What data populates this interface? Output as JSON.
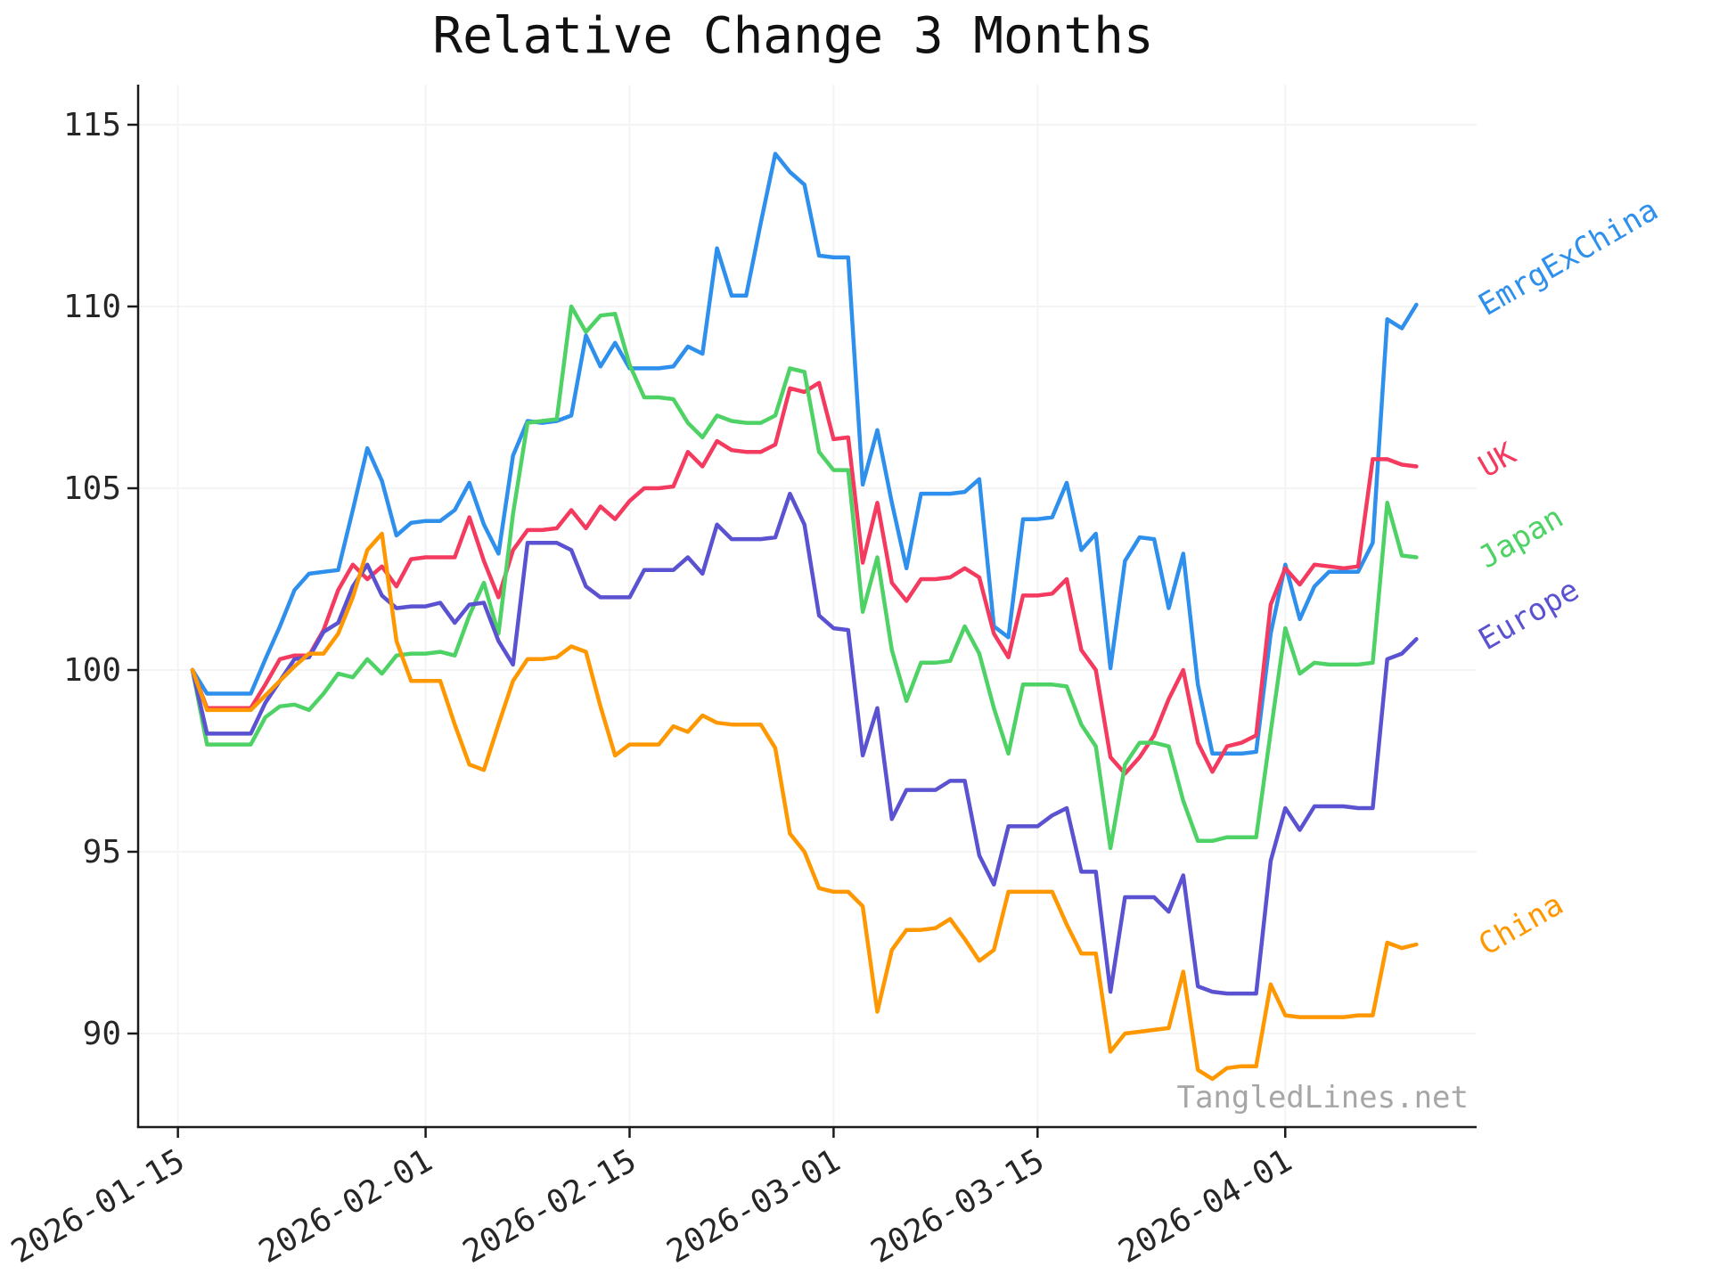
{
  "title": "Relative Change 3 Months",
  "watermark": "TangledLines.net",
  "chart_data": {
    "type": "line",
    "title": "Relative Change 3 Months",
    "xlabel": "",
    "ylabel": "",
    "grid": true,
    "legend_position": "right-edge-inline-labels",
    "ylim": [
      87.4,
      116.1
    ],
    "y_ticks": [
      90,
      95,
      100,
      105,
      110,
      115
    ],
    "x_ticks": [
      {
        "label": "2026-01-15",
        "x_index": -1
      },
      {
        "label": "2026-02-01",
        "x_index": 16
      },
      {
        "label": "2026-02-15",
        "x_index": 30
      },
      {
        "label": "2026-03-01",
        "x_index": 44
      },
      {
        "label": "2026-03-15",
        "x_index": 58
      },
      {
        "label": "2026-04-01",
        "x_index": 75
      }
    ],
    "colors": {
      "axis": "#1a1a1a",
      "grid": "#f4f4f4",
      "tick_label": "#262626",
      "title": "#111111",
      "watermark": "#a6a6a6"
    },
    "x": [
      "2026-01-16",
      "2026-01-17",
      "2026-01-18",
      "2026-01-19",
      "2026-01-20",
      "2026-01-21",
      "2026-01-22",
      "2026-01-23",
      "2026-01-24",
      "2026-01-25",
      "2026-01-26",
      "2026-01-27",
      "2026-01-28",
      "2026-01-29",
      "2026-01-30",
      "2026-01-31",
      "2026-02-01",
      "2026-02-02",
      "2026-02-03",
      "2026-02-04",
      "2026-02-05",
      "2026-02-06",
      "2026-02-07",
      "2026-02-08",
      "2026-02-09",
      "2026-02-10",
      "2026-02-11",
      "2026-02-12",
      "2026-02-13",
      "2026-02-14",
      "2026-02-15",
      "2026-02-16",
      "2026-02-17",
      "2026-02-18",
      "2026-02-19",
      "2026-02-20",
      "2026-02-21",
      "2026-02-22",
      "2026-02-23",
      "2026-02-24",
      "2026-02-25",
      "2026-02-26",
      "2026-02-27",
      "2026-02-28",
      "2026-03-01",
      "2026-03-02",
      "2026-03-03",
      "2026-03-04",
      "2026-03-05",
      "2026-03-06",
      "2026-03-07",
      "2026-03-08",
      "2026-03-09",
      "2026-03-10",
      "2026-03-11",
      "2026-03-12",
      "2026-03-13",
      "2026-03-14",
      "2026-03-15",
      "2026-03-16",
      "2026-03-17",
      "2026-03-18",
      "2026-03-19",
      "2026-03-20",
      "2026-03-21",
      "2026-03-22",
      "2026-03-23",
      "2026-03-24",
      "2026-03-25",
      "2026-03-26",
      "2026-03-27",
      "2026-03-28",
      "2026-03-29",
      "2026-03-30",
      "2026-03-31",
      "2026-04-01",
      "2026-04-02",
      "2026-04-03",
      "2026-04-04",
      "2026-04-05",
      "2026-04-06",
      "2026-04-07",
      "2026-04-08",
      "2026-04-09",
      "2026-04-10"
    ],
    "series": [
      {
        "name": "EmrgExChina",
        "color": "#2E90EC",
        "values": [
          100.0,
          99.35,
          99.35,
          99.35,
          99.35,
          100.3,
          101.2,
          102.2,
          102.65,
          102.7,
          102.75,
          104.4,
          106.1,
          105.2,
          103.7,
          104.05,
          104.1,
          104.1,
          104.4,
          105.15,
          104.0,
          103.2,
          105.9,
          106.85,
          106.8,
          106.85,
          107.0,
          109.2,
          108.35,
          109.0,
          108.3,
          108.3,
          108.3,
          108.35,
          108.9,
          108.7,
          111.6,
          110.3,
          110.3,
          112.3,
          114.2,
          113.7,
          113.35,
          111.4,
          111.35,
          111.35,
          105.1,
          106.6,
          104.6,
          102.8,
          104.85,
          104.85,
          104.85,
          104.9,
          105.25,
          101.2,
          100.9,
          104.15,
          104.15,
          104.2,
          105.15,
          103.3,
          103.75,
          100.05,
          103.0,
          103.65,
          103.6,
          101.7,
          103.2,
          99.6,
          97.7,
          97.7,
          97.7,
          97.75,
          101.0,
          102.9,
          101.4,
          102.3,
          102.7,
          102.7,
          102.7,
          103.5,
          109.65,
          109.4,
          110.05
        ]
      },
      {
        "name": "UK",
        "color": "#F43A5F",
        "values": [
          100.0,
          98.95,
          98.95,
          98.95,
          98.95,
          99.6,
          100.3,
          100.4,
          100.4,
          101.1,
          102.2,
          102.9,
          102.5,
          102.85,
          102.3,
          103.05,
          103.1,
          103.1,
          103.1,
          104.2,
          103.0,
          102.0,
          103.3,
          103.85,
          103.85,
          103.9,
          104.4,
          103.9,
          104.5,
          104.15,
          104.65,
          105.0,
          105.0,
          105.05,
          106.0,
          105.6,
          106.3,
          106.05,
          106.0,
          106.0,
          106.2,
          107.75,
          107.65,
          107.9,
          106.35,
          106.4,
          102.95,
          104.6,
          102.4,
          101.9,
          102.5,
          102.5,
          102.55,
          102.8,
          102.55,
          101.0,
          100.35,
          102.05,
          102.05,
          102.1,
          102.5,
          100.55,
          100.0,
          97.6,
          97.15,
          97.6,
          98.2,
          99.2,
          100.0,
          98.0,
          97.2,
          97.9,
          98.0,
          98.2,
          101.8,
          102.8,
          102.35,
          102.9,
          102.85,
          102.8,
          102.85,
          105.8,
          105.8,
          105.65,
          105.6
        ]
      },
      {
        "name": "Japan",
        "color": "#4FD265",
        "values": [
          100.0,
          97.95,
          97.95,
          97.95,
          97.95,
          98.7,
          99.0,
          99.05,
          98.9,
          99.35,
          99.9,
          99.8,
          100.3,
          99.9,
          100.4,
          100.45,
          100.45,
          100.5,
          100.4,
          101.5,
          102.4,
          101.0,
          104.3,
          106.8,
          106.85,
          106.9,
          110.0,
          109.3,
          109.75,
          109.8,
          108.4,
          107.5,
          107.5,
          107.45,
          106.8,
          106.4,
          107.0,
          106.85,
          106.8,
          106.8,
          107.0,
          108.3,
          108.2,
          106.0,
          105.5,
          105.5,
          101.6,
          103.1,
          100.55,
          99.15,
          100.2,
          100.2,
          100.25,
          101.2,
          100.45,
          98.95,
          97.7,
          99.6,
          99.6,
          99.6,
          99.55,
          98.5,
          97.9,
          95.1,
          97.4,
          98.0,
          98.0,
          97.9,
          96.4,
          95.3,
          95.3,
          95.4,
          95.4,
          95.4,
          98.3,
          101.15,
          99.9,
          100.2,
          100.15,
          100.15,
          100.15,
          100.2,
          104.6,
          103.15,
          103.1
        ]
      },
      {
        "name": "Europe",
        "color": "#5A52D0",
        "values": [
          100.0,
          98.25,
          98.25,
          98.25,
          98.25,
          99.1,
          99.7,
          100.3,
          100.35,
          101.05,
          101.3,
          102.3,
          102.9,
          102.05,
          101.7,
          101.75,
          101.75,
          101.85,
          101.3,
          101.8,
          101.85,
          100.8,
          100.15,
          103.5,
          103.5,
          103.5,
          103.3,
          102.3,
          102.0,
          102.0,
          102.0,
          102.75,
          102.75,
          102.75,
          103.1,
          102.65,
          104.0,
          103.6,
          103.6,
          103.6,
          103.65,
          104.85,
          104.0,
          101.5,
          101.15,
          101.1,
          97.65,
          98.95,
          95.9,
          96.7,
          96.7,
          96.7,
          96.95,
          96.95,
          94.9,
          94.1,
          95.7,
          95.7,
          95.7,
          96.0,
          96.2,
          94.45,
          94.45,
          91.15,
          93.75,
          93.75,
          93.75,
          93.35,
          94.35,
          91.3,
          91.15,
          91.1,
          91.1,
          91.1,
          94.75,
          96.2,
          95.6,
          96.25,
          96.25,
          96.25,
          96.2,
          96.2,
          100.3,
          100.45,
          100.85
        ]
      },
      {
        "name": "China",
        "color": "#FF9800",
        "values": [
          100.0,
          98.9,
          98.9,
          98.9,
          98.9,
          99.3,
          99.7,
          100.1,
          100.45,
          100.45,
          101.0,
          102.0,
          103.3,
          103.75,
          100.8,
          99.7,
          99.7,
          99.7,
          98.5,
          97.4,
          97.25,
          98.5,
          99.7,
          100.3,
          100.3,
          100.35,
          100.65,
          100.5,
          99.0,
          97.65,
          97.95,
          97.95,
          97.95,
          98.45,
          98.3,
          98.75,
          98.55,
          98.5,
          98.5,
          98.5,
          97.85,
          95.5,
          95.0,
          94.0,
          93.9,
          93.9,
          93.5,
          90.6,
          92.3,
          92.85,
          92.85,
          92.9,
          93.15,
          92.6,
          92.0,
          92.3,
          93.9,
          93.9,
          93.9,
          93.9,
          93.0,
          92.2,
          92.2,
          89.5,
          90.0,
          90.05,
          90.1,
          90.15,
          91.7,
          89.0,
          88.75,
          89.05,
          89.1,
          89.1,
          91.35,
          90.5,
          90.45,
          90.45,
          90.45,
          90.45,
          90.5,
          90.5,
          92.5,
          92.35,
          92.45
        ]
      }
    ]
  }
}
